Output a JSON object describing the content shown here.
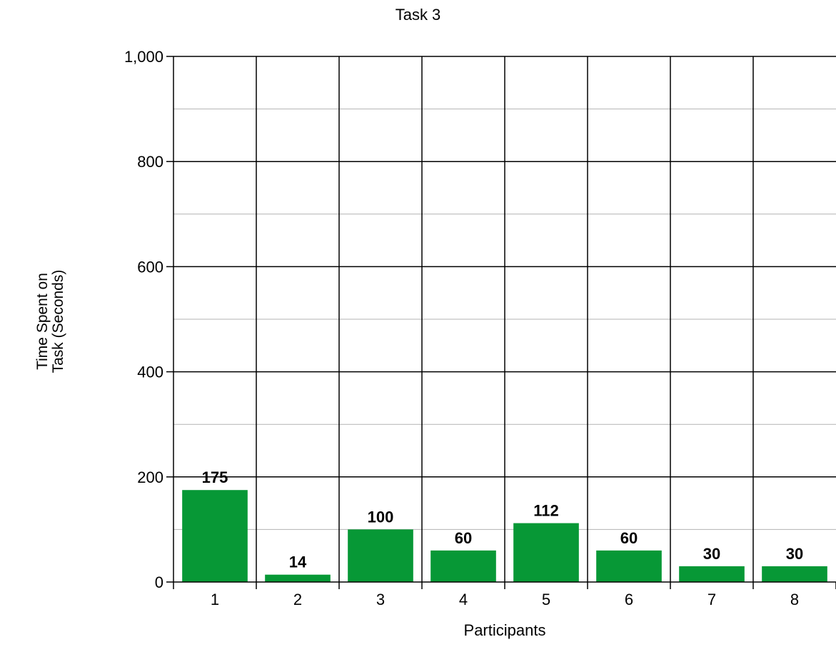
{
  "chart_data": {
    "type": "bar",
    "title": "Task 3",
    "xlabel": "Participants",
    "ylabel": "Time Spent on Task (Seconds)",
    "categories": [
      "1",
      "2",
      "3",
      "4",
      "5",
      "6",
      "7",
      "8"
    ],
    "values": [
      175,
      14,
      100,
      60,
      112,
      60,
      30,
      30
    ],
    "data_labels": [
      "175",
      "14",
      "100",
      "60",
      "112",
      "60",
      "30",
      "30"
    ],
    "ylim": [
      0,
      1000
    ],
    "yticks": [
      0,
      200,
      400,
      600,
      800,
      1000
    ],
    "ytick_labels": [
      "0",
      "200",
      "400",
      "600",
      "800",
      "1,000"
    ],
    "minor_step": 100,
    "grid": true,
    "bar_color": "#079836",
    "major_grid_color": "#000000",
    "minor_grid_color": "#b3b3b3"
  }
}
